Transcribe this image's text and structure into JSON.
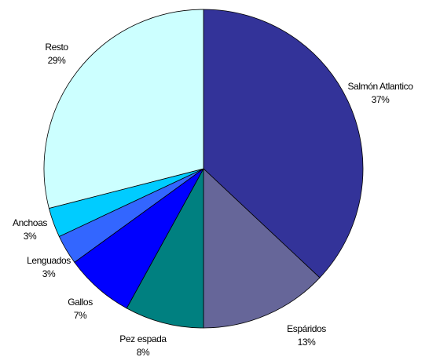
{
  "chart_data": {
    "type": "pie",
    "title": "",
    "start_angle_deg": 0,
    "direction": "clockwise",
    "slices": [
      {
        "label": "Salmón Atlantico",
        "value": 37,
        "value_label": "37%",
        "color": "#333399"
      },
      {
        "label": "Espáridos",
        "value": 13,
        "value_label": "13%",
        "color": "#666699"
      },
      {
        "label": "Pez espada",
        "value": 8,
        "value_label": "8%",
        "color": "#008080"
      },
      {
        "label": "Gallos",
        "value": 7,
        "value_label": "7%",
        "color": "#0000FF"
      },
      {
        "label": "Lenguados",
        "value": 3,
        "value_label": "3%",
        "color": "#3366FF"
      },
      {
        "label": "Anchoas",
        "value": 3,
        "value_label": "3%",
        "color": "#00CCFF"
      },
      {
        "label": "Resto",
        "value": 29,
        "value_label": "29%",
        "color": "#CCFFFF"
      }
    ]
  }
}
